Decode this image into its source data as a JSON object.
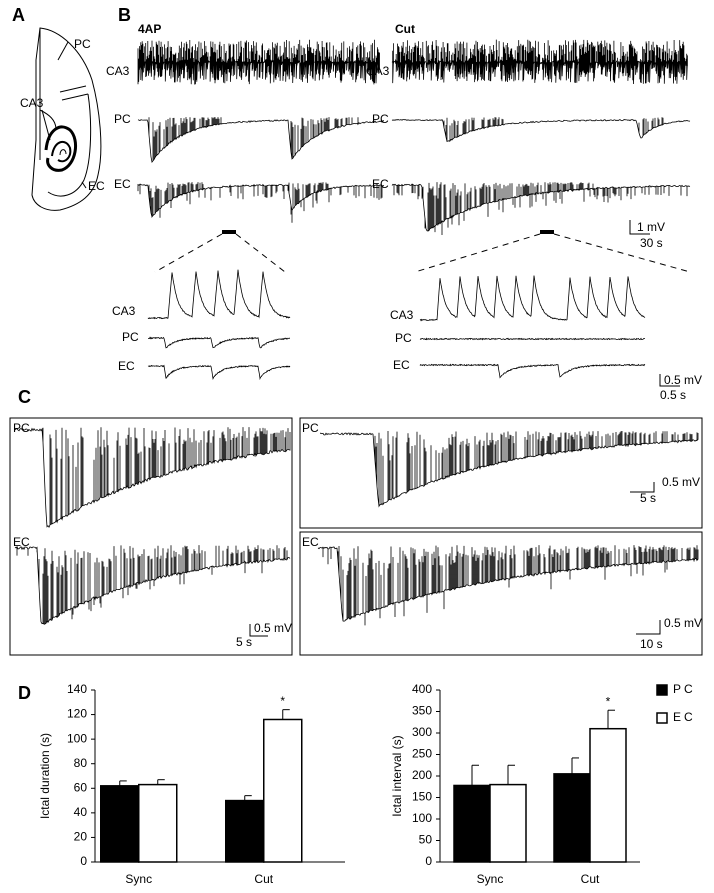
{
  "panel_labels": [
    "A",
    "B",
    "C",
    "D"
  ],
  "panel_a": {
    "labels": [
      "PC",
      "CA3",
      "EC"
    ]
  },
  "panel_b": {
    "conditions": [
      "4AP",
      "Cut"
    ],
    "traces": [
      "CA3",
      "PC",
      "EC"
    ],
    "scale": [
      "1 mV",
      "30 s"
    ],
    "zoom_traces": [
      "CA3",
      "PC",
      "EC"
    ],
    "zoom_scale": [
      "0.5 mV",
      "0.5 s"
    ]
  },
  "panel_c": {
    "left": {
      "traces": [
        "PC",
        "EC"
      ],
      "scale": [
        "0.5 mV",
        "5 s"
      ]
    },
    "right_top": {
      "trace": "PC",
      "scale": [
        "0.5 mV",
        "5 s"
      ]
    },
    "right_bottom": {
      "trace": "EC",
      "scale": [
        "0.5 mV",
        "10 s"
      ]
    }
  },
  "chart_data": [
    {
      "type": "bar",
      "y_label": "Ictal duration (s)",
      "categories": [
        "Sync",
        "Cut"
      ],
      "series": [
        {
          "color": "#000000",
          "values": [
            62,
            50
          ],
          "errors": [
            4,
            4
          ]
        },
        {
          "color": "#ffffff",
          "values": [
            63,
            116
          ],
          "errors": [
            4,
            8
          ]
        }
      ],
      "ylim": [
        0,
        140
      ],
      "yticks": [
        0,
        20,
        40,
        60,
        80,
        100,
        120,
        140
      ],
      "annotation": "*"
    },
    {
      "type": "bar",
      "y_label": "Ictal interval (s)",
      "categories": [
        "Sync",
        "Cut"
      ],
      "series": [
        {
          "name": "PC",
          "color": "#000000",
          "values": [
            178,
            205
          ],
          "errors": [
            47,
            37
          ]
        },
        {
          "name": "EC",
          "color": "#ffffff",
          "values": [
            180,
            310
          ],
          "errors": [
            45,
            43
          ]
        }
      ],
      "ylim": [
        0,
        400
      ],
      "yticks": [
        0,
        50,
        100,
        150,
        200,
        250,
        300,
        350,
        400
      ],
      "annotation": "*",
      "legend": "top-right"
    }
  ]
}
